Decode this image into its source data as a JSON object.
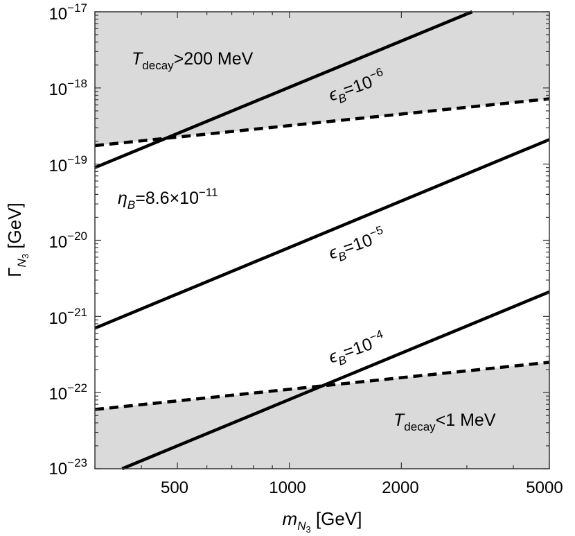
{
  "chart_data": {
    "type": "line",
    "title": "",
    "xlabel": {
      "main": "m",
      "sub": "N",
      "subsub": "3",
      "unit": " [GeV]"
    },
    "ylabel": {
      "main": "Γ",
      "sub": "N",
      "subsub": "3",
      "unit": " [GeV]"
    },
    "xscale": "log",
    "yscale": "log",
    "xlim": [
      300,
      5000
    ],
    "ylim": [
      1e-23,
      1e-17
    ],
    "grid": false,
    "x_ticks": [
      {
        "value": 500,
        "label": "500"
      },
      {
        "value": 1000,
        "label": "1000"
      },
      {
        "value": 2000,
        "label": "2000"
      },
      {
        "value": 5000,
        "label": "5000"
      }
    ],
    "y_ticks": [
      {
        "value": 1e-23,
        "base": "10",
        "exp": "−23"
      },
      {
        "value": 1e-22,
        "base": "10",
        "exp": "−22"
      },
      {
        "value": 1e-21,
        "base": "10",
        "exp": "−21"
      },
      {
        "value": 1e-20,
        "base": "10",
        "exp": "−20"
      },
      {
        "value": 1e-19,
        "base": "10",
        "exp": "−19"
      },
      {
        "value": 1e-18,
        "base": "10",
        "exp": "−18"
      },
      {
        "value": 1e-17,
        "base": "10",
        "exp": "−17"
      }
    ],
    "shading_color": "#dadada",
    "series": [
      {
        "name": "epsilon_B=1e-6",
        "style": "solid",
        "x": [
          300,
          3100
        ],
        "y": [
          9e-20,
          1e-17
        ]
      },
      {
        "name": "epsilon_B=1e-5",
        "style": "solid",
        "x": [
          300,
          5000
        ],
        "y": [
          7e-22,
          2.1e-19
        ]
      },
      {
        "name": "epsilon_B=1e-4",
        "style": "solid",
        "x": [
          355,
          5000
        ],
        "y": [
          1e-23,
          2.1e-21
        ]
      },
      {
        "name": "T_decay=200 MeV boundary",
        "style": "dashed",
        "x": [
          300,
          5000
        ],
        "y": [
          1.75e-19,
          7.2e-19
        ]
      },
      {
        "name": "T_decay=1 MeV boundary",
        "style": "dashed",
        "x": [
          300,
          5000
        ],
        "y": [
          6e-23,
          2.5e-22
        ]
      }
    ],
    "annotations": {
      "t_high": {
        "main": "T",
        "sub": "decay",
        "rest": ">200 MeV"
      },
      "t_low": {
        "main": "T",
        "sub": "decay",
        "rest": "<1 MeV"
      },
      "eta": {
        "main": "η",
        "sub": "B",
        "rest": "=8.6×10",
        "sup": "−11"
      },
      "eps6": {
        "main": "ϵ",
        "sub": "B",
        "rest": "=10",
        "sup": "−6"
      },
      "eps5": {
        "main": "ϵ",
        "sub": "B",
        "rest": "=10",
        "sup": "−5"
      },
      "eps4": {
        "main": "ϵ",
        "sub": "B",
        "rest": "=10",
        "sup": "−4"
      }
    }
  }
}
